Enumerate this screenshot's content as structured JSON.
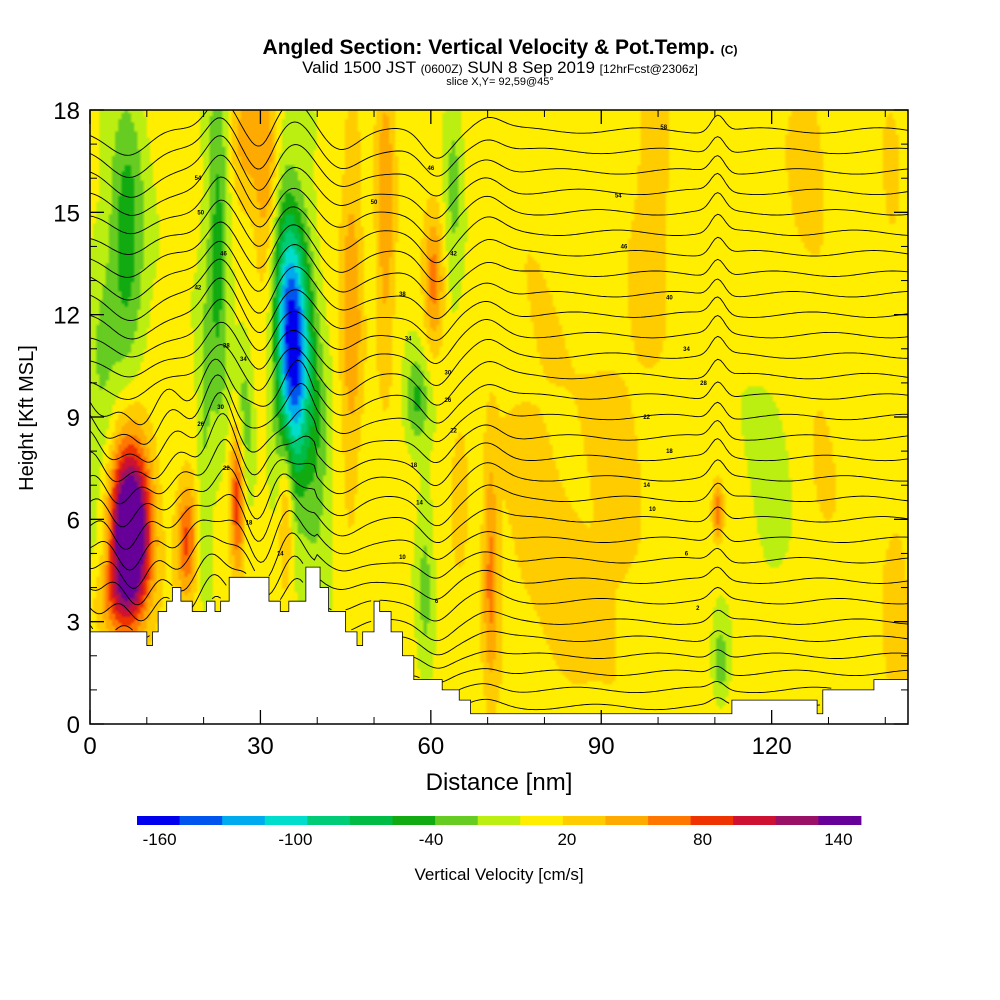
{
  "title": {
    "main": "Angled Section: Vertical Velocity & Pot.Temp.",
    "unit": "(C)",
    "valid_prefix": "Valid 1500 JST",
    "valid_utc": "(0600Z)",
    "valid_date": "SUN 8 Sep 2019",
    "forecast": "[12hrFcst@2306z]",
    "slice": "slice X,Y= 92,59@45°"
  },
  "chart_data": {
    "type": "heatmap",
    "xlabel": "Distance [nm]",
    "ylabel": "Height [Kft MSL]",
    "xlim": [
      0,
      144
    ],
    "ylim": [
      0,
      18
    ],
    "x_ticks": [
      0,
      30,
      60,
      90,
      120
    ],
    "y_ticks": [
      0,
      3,
      6,
      9,
      12,
      15,
      18
    ],
    "x_ticklabels": [
      "0",
      "30",
      "60",
      "90",
      "120"
    ],
    "y_ticklabels": [
      "0",
      "3",
      "6",
      "9",
      "12",
      "15",
      "18"
    ],
    "colorbar": {
      "label": "Vertical Velocity [cm/s]",
      "min": -170,
      "max": 150,
      "tick_labels": [
        "-160",
        "-100",
        "-40",
        "20",
        "80",
        "140"
      ],
      "tick_values": [
        -160,
        -100,
        -40,
        20,
        80,
        140
      ],
      "colors": [
        "#0000ee",
        "#0055ee",
        "#00aaee",
        "#00ddcc",
        "#00cc77",
        "#00bb44",
        "#11aa11",
        "#66cc22",
        "#bbee11",
        "#ffee00",
        "#ffcc00",
        "#ffaa00",
        "#ff7700",
        "#ee3300",
        "#cc1133",
        "#991166",
        "#660099"
      ]
    },
    "velocity_field": {
      "background": "#ccee11",
      "cells": [
        {
          "x": 7,
          "y": 5.4,
          "sx": 2.4,
          "sy": 1.6,
          "w": 150
        },
        {
          "x": 7,
          "y": 6.6,
          "sx": 2.8,
          "sy": 2.2,
          "w": 60
        },
        {
          "x": 4,
          "y": 3.6,
          "sx": 2.5,
          "sy": 0.8,
          "w": 40
        },
        {
          "x": 17,
          "y": 5.4,
          "sx": 1.3,
          "sy": 1.2,
          "w": 75
        },
        {
          "x": 26,
          "y": 6.8,
          "sx": 0.9,
          "sy": 1.6,
          "w": 90
        },
        {
          "x": 36,
          "y": 10.8,
          "sx": 2.0,
          "sy": 2.6,
          "w": -160
        },
        {
          "x": 34,
          "y": 12.8,
          "sx": 1.6,
          "sy": 2.5,
          "w": -45
        },
        {
          "x": 34.5,
          "y": 6.3,
          "sx": 0.9,
          "sy": 1.6,
          "w": 55
        },
        {
          "x": 27,
          "y": 8.5,
          "sx": 1.1,
          "sy": 1.8,
          "w": -45
        },
        {
          "x": 22.5,
          "y": 14,
          "sx": 1.4,
          "sy": 4.0,
          "w": -50
        },
        {
          "x": 20,
          "y": 8,
          "sx": 0.9,
          "sy": 3.0,
          "w": -25
        },
        {
          "x": 6.5,
          "y": 14.2,
          "sx": 2.2,
          "sy": 3.0,
          "w": -55
        },
        {
          "x": 2,
          "y": 9,
          "sx": 2.0,
          "sy": 4.0,
          "w": -25
        },
        {
          "x": 31,
          "y": 16,
          "sx": 1.5,
          "sy": 2.5,
          "w": 45
        },
        {
          "x": 27,
          "y": 17,
          "sx": 2.0,
          "sy": 1.5,
          "w": 40
        },
        {
          "x": 40,
          "y": 8,
          "sx": 1.6,
          "sy": 2.5,
          "w": -35
        },
        {
          "x": 46,
          "y": 12,
          "sx": 1.4,
          "sy": 4.0,
          "w": 45
        },
        {
          "x": 52,
          "y": 15,
          "sx": 1.2,
          "sy": 3.5,
          "w": 45
        },
        {
          "x": 60.5,
          "y": 13,
          "sx": 1.2,
          "sy": 1.5,
          "w": 55
        },
        {
          "x": 57.5,
          "y": 9.5,
          "sx": 1.4,
          "sy": 0.9,
          "w": -45
        },
        {
          "x": 64,
          "y": 16,
          "sx": 1.2,
          "sy": 2.5,
          "w": -30
        },
        {
          "x": 70.5,
          "y": 4.5,
          "sx": 0.9,
          "sy": 2.4,
          "w": 50
        },
        {
          "x": 65,
          "y": 7,
          "sx": 1.2,
          "sy": 1.5,
          "w": 28
        },
        {
          "x": 59,
          "y": 4,
          "sx": 1.0,
          "sy": 2.0,
          "w": -30
        },
        {
          "x": 110.5,
          "y": 6.2,
          "sx": 0.7,
          "sy": 0.6,
          "w": 65
        },
        {
          "x": 111,
          "y": 1.8,
          "sx": 1.0,
          "sy": 0.8,
          "w": -40
        },
        {
          "x": 99,
          "y": 16,
          "sx": 2.5,
          "sy": 3.5,
          "w": 25
        },
        {
          "x": 126,
          "y": 16.5,
          "sx": 2.5,
          "sy": 2.0,
          "w": 22
        },
        {
          "x": 141,
          "y": 16,
          "sx": 1.5,
          "sy": 2.0,
          "w": 20
        },
        {
          "x": 78,
          "y": 8,
          "sx": 6.0,
          "sy": 8.0,
          "w": 16
        },
        {
          "x": 93,
          "y": 6,
          "sx": 4.0,
          "sy": 5.0,
          "w": 18
        },
        {
          "x": 85,
          "y": 3,
          "sx": 3.0,
          "sy": 2.0,
          "w": 14
        },
        {
          "x": 142,
          "y": 3,
          "sx": 2.0,
          "sy": 2.5,
          "w": 25
        },
        {
          "x": 129,
          "y": 9,
          "sx": 3.0,
          "sy": 4.0,
          "w": 14
        },
        {
          "x": 120,
          "y": 6,
          "sx": 3.0,
          "sy": 3.0,
          "w": -10
        }
      ]
    },
    "terrain_kft": [
      [
        0,
        2.7
      ],
      [
        2,
        2.7
      ],
      [
        10,
        2.7
      ],
      [
        10,
        2.3
      ],
      [
        11,
        2.3
      ],
      [
        11,
        2.7
      ],
      [
        12,
        2.7
      ],
      [
        12,
        3.0
      ],
      [
        12,
        3.3
      ],
      [
        13.5,
        3.3
      ],
      [
        13.5,
        3.6
      ],
      [
        14.5,
        3.6
      ],
      [
        14.5,
        4.0
      ],
      [
        16,
        4.0
      ],
      [
        16,
        3.6
      ],
      [
        18,
        3.6
      ],
      [
        18,
        3.3
      ],
      [
        20.5,
        3.3
      ],
      [
        20.5,
        3.6
      ],
      [
        22,
        3.6
      ],
      [
        22,
        3.3
      ],
      [
        23,
        3.3
      ],
      [
        23,
        3.6
      ],
      [
        24.5,
        3.6
      ],
      [
        24.5,
        4.3
      ],
      [
        31.5,
        4.3
      ],
      [
        31.5,
        3.6
      ],
      [
        33.5,
        3.6
      ],
      [
        33.5,
        3.3
      ],
      [
        35,
        3.3
      ],
      [
        35,
        3.6
      ],
      [
        38,
        3.6
      ],
      [
        38,
        4.6
      ],
      [
        40.5,
        4.6
      ],
      [
        40.5,
        4.0
      ],
      [
        42,
        4.0
      ],
      [
        42,
        3.3
      ],
      [
        45,
        3.3
      ],
      [
        45,
        2.7
      ],
      [
        47,
        2.7
      ],
      [
        47,
        2.3
      ],
      [
        48,
        2.3
      ],
      [
        48,
        2.7
      ],
      [
        50,
        2.7
      ],
      [
        50,
        3.6
      ],
      [
        51,
        3.6
      ],
      [
        51,
        3.3
      ],
      [
        53,
        3.3
      ],
      [
        53,
        2.7
      ],
      [
        55,
        2.7
      ],
      [
        55,
        2.0
      ],
      [
        57,
        2.0
      ],
      [
        57,
        1.3
      ],
      [
        62,
        1.3
      ],
      [
        62,
        1.0
      ],
      [
        65,
        1.0
      ],
      [
        65,
        0.7
      ],
      [
        67,
        0.7
      ],
      [
        67,
        0.3
      ],
      [
        113,
        0.3
      ],
      [
        113,
        0.7
      ],
      [
        128,
        0.7
      ],
      [
        128,
        0.3
      ],
      [
        129,
        0.3
      ],
      [
        129,
        1.0
      ],
      [
        138,
        1.0
      ],
      [
        138,
        1.3
      ],
      [
        144,
        1.3
      ]
    ],
    "theta_contours": {
      "levels_kft": [
        0.5,
        1.0,
        1.5,
        2.0,
        2.5,
        3.0,
        3.6,
        4.2,
        4.8,
        5.4,
        6.0,
        6.6,
        7.2,
        7.8,
        8.4,
        9.0,
        9.6,
        10.2,
        10.8,
        11.4,
        12.0,
        12.6,
        13.2,
        13.8,
        14.4,
        15.0,
        15.6,
        16.2,
        16.8,
        17.4
      ],
      "contour_labels": [
        {
          "x": 101,
          "y": 17.5,
          "text": "58"
        },
        {
          "x": 93,
          "y": 15.5,
          "text": "54"
        },
        {
          "x": 94,
          "y": 14.0,
          "text": "46"
        },
        {
          "x": 102,
          "y": 12.5,
          "text": "40"
        },
        {
          "x": 105,
          "y": 11.0,
          "text": "34"
        },
        {
          "x": 108,
          "y": 10.0,
          "text": "28"
        },
        {
          "x": 98,
          "y": 9.0,
          "text": "22"
        },
        {
          "x": 102,
          "y": 8.0,
          "text": "18"
        },
        {
          "x": 98,
          "y": 7.0,
          "text": "14"
        },
        {
          "x": 99,
          "y": 6.3,
          "text": "10"
        },
        {
          "x": 105,
          "y": 5.0,
          "text": "6"
        },
        {
          "x": 107,
          "y": 3.4,
          "text": "2"
        },
        {
          "x": 60,
          "y": 16.3,
          "text": "46"
        },
        {
          "x": 50,
          "y": 15.3,
          "text": "50"
        },
        {
          "x": 64,
          "y": 13.8,
          "text": "42"
        },
        {
          "x": 55,
          "y": 12.6,
          "text": "38"
        },
        {
          "x": 56,
          "y": 11.3,
          "text": "34"
        },
        {
          "x": 63,
          "y": 10.3,
          "text": "30"
        },
        {
          "x": 63,
          "y": 9.5,
          "text": "26"
        },
        {
          "x": 64,
          "y": 8.6,
          "text": "22"
        },
        {
          "x": 57,
          "y": 7.6,
          "text": "18"
        },
        {
          "x": 58,
          "y": 6.5,
          "text": "14"
        },
        {
          "x": 55,
          "y": 4.9,
          "text": "10"
        },
        {
          "x": 61,
          "y": 3.6,
          "text": "6"
        },
        {
          "x": 19,
          "y": 16.0,
          "text": "54"
        },
        {
          "x": 19.5,
          "y": 15.0,
          "text": "50"
        },
        {
          "x": 23.5,
          "y": 13.8,
          "text": "46"
        },
        {
          "x": 19,
          "y": 12.8,
          "text": "42"
        },
        {
          "x": 24,
          "y": 11.1,
          "text": "38"
        },
        {
          "x": 27,
          "y": 10.7,
          "text": "34"
        },
        {
          "x": 23,
          "y": 9.3,
          "text": "30"
        },
        {
          "x": 19.5,
          "y": 8.8,
          "text": "26"
        },
        {
          "x": 24,
          "y": 7.5,
          "text": "22"
        },
        {
          "x": 28,
          "y": 5.9,
          "text": "18"
        },
        {
          "x": 33.5,
          "y": 5.0,
          "text": "14"
        }
      ]
    }
  }
}
